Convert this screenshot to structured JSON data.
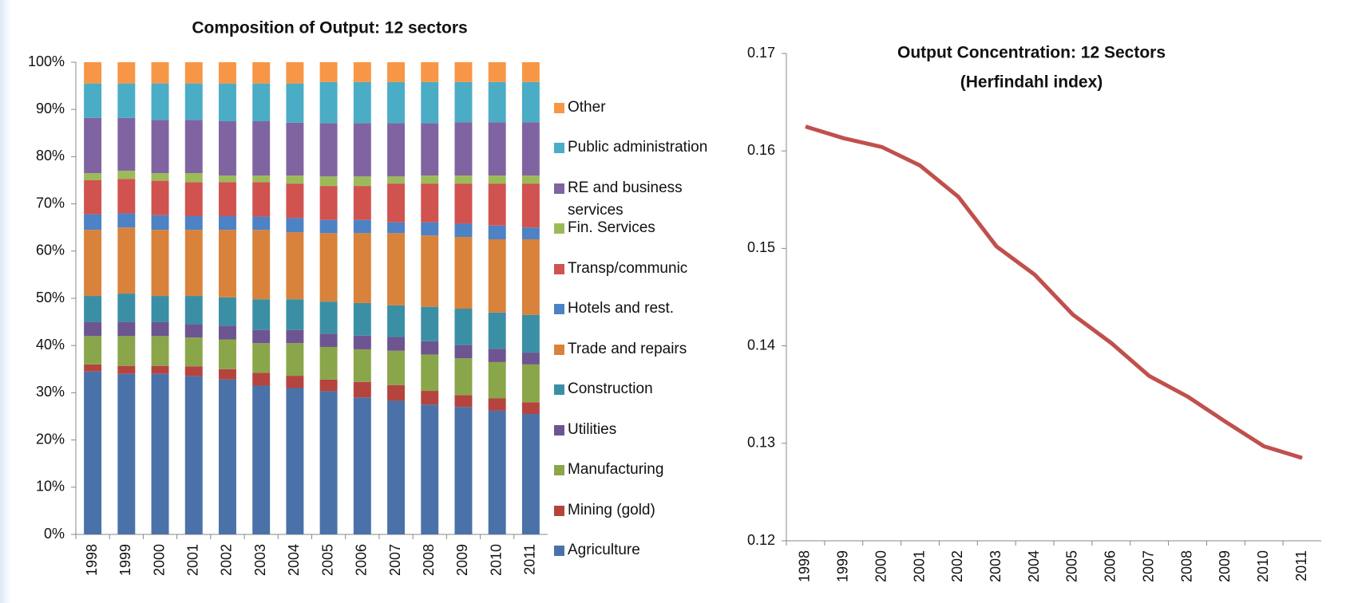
{
  "chart_data": [
    {
      "type": "stacked_bar",
      "title": "Composition of Output: 12 sectors",
      "categories": [
        "1998",
        "1999",
        "2000",
        "2001",
        "2002",
        "2003",
        "2004",
        "2005",
        "2006",
        "2007",
        "2008",
        "2009",
        "2010",
        "2011"
      ],
      "series": [
        {
          "name": "Agriculture",
          "color": "#4a72a8",
          "values": [
            34.5,
            34,
            34,
            33.5,
            32.8,
            31.5,
            31,
            30.3,
            29,
            28.3,
            27.5,
            27,
            26.2,
            25.5
          ]
        },
        {
          "name": "Mining (gold)",
          "color": "#b5443f",
          "values": [
            1.5,
            1.7,
            1.7,
            2.1,
            2.2,
            2.7,
            2.6,
            2.5,
            3.3,
            3.3,
            2.9,
            2.5,
            2.6,
            2.5
          ]
        },
        {
          "name": "Manufacturing",
          "color": "#8aa64a",
          "values": [
            6,
            6.3,
            6.3,
            6.1,
            6.3,
            6.3,
            6.9,
            6.9,
            6.9,
            7.3,
            7.7,
            7.8,
            7.7,
            8
          ]
        },
        {
          "name": "Utilities",
          "color": "#6d5591",
          "values": [
            3,
            3,
            3,
            2.8,
            2.9,
            2.8,
            2.8,
            2.8,
            2.9,
            2.9,
            2.8,
            2.8,
            2.8,
            2.5
          ]
        },
        {
          "name": "Construction",
          "color": "#3b8fa5",
          "values": [
            5.5,
            6,
            5.5,
            6,
            6,
            6.5,
            6.5,
            6.8,
            6.9,
            6.7,
            7.3,
            7.7,
            7.7,
            8
          ]
        },
        {
          "name": "Trade and repairs",
          "color": "#d9823b",
          "values": [
            14,
            14,
            14,
            14,
            14.3,
            14.7,
            14.2,
            14.5,
            14.8,
            15.3,
            15.1,
            15.2,
            15.5,
            16
          ]
        },
        {
          "name": "Hotels and rest.",
          "color": "#4d82c4",
          "values": [
            3.3,
            3,
            3.1,
            2.9,
            2.9,
            2.8,
            3,
            2.8,
            2.8,
            2.3,
            2.8,
            2.8,
            2.9,
            2.5
          ]
        },
        {
          "name": "Transp/communic",
          "color": "#d05350",
          "values": [
            7.2,
            7.3,
            7.3,
            7.2,
            7.2,
            7.3,
            7.3,
            7.2,
            7.2,
            8.2,
            8.2,
            8.5,
            8.9,
            9.3
          ]
        },
        {
          "name": "Fin. Services",
          "color": "#9bbb59",
          "values": [
            1.5,
            1.7,
            1.6,
            1.9,
            1.4,
            1.4,
            1.7,
            2,
            2,
            1.5,
            1.7,
            1.7,
            1.7,
            1.7
          ]
        },
        {
          "name": "RE and business services",
          "color": "#8064a2",
          "values": [
            11.7,
            11.2,
            11.3,
            11.3,
            11.5,
            11.5,
            11.2,
            11.3,
            11.3,
            11.3,
            11.1,
            11.3,
            11.3,
            11.3
          ]
        },
        {
          "name": "Public administration",
          "color": "#4bacc6",
          "values": [
            7.3,
            7.3,
            7.7,
            7.7,
            8,
            8,
            8.3,
            8.7,
            8.7,
            8.7,
            8.7,
            8.5,
            8.5,
            8.5
          ]
        },
        {
          "name": "Other",
          "color": "#f79646",
          "values": [
            4.5,
            4.5,
            4.5,
            4.5,
            4.5,
            4.5,
            4.5,
            4.2,
            4.2,
            4.2,
            4.2,
            4.2,
            4.2,
            4.2
          ]
        }
      ],
      "ylim": [
        0,
        100
      ],
      "yticks": [
        {
          "value": 0,
          "label": "0%"
        },
        {
          "value": 10,
          "label": "10%"
        },
        {
          "value": 20,
          "label": "20%"
        },
        {
          "value": 30,
          "label": "30%"
        },
        {
          "value": 40,
          "label": "40%"
        },
        {
          "value": 50,
          "label": "50%"
        },
        {
          "value": 60,
          "label": "60%"
        },
        {
          "value": 70,
          "label": "70%"
        },
        {
          "value": 80,
          "label": "80%"
        },
        {
          "value": 90,
          "label": "90%"
        },
        {
          "value": 100,
          "label": "100%"
        }
      ],
      "legend": "right"
    },
    {
      "type": "line",
      "title": "Output Concentration: 12 Sectors",
      "subtitle": "(Herfindahl index)",
      "categories": [
        "1998",
        "1999",
        "2000",
        "2001",
        "2002",
        "2003",
        "2004",
        "2005",
        "2006",
        "2007",
        "2008",
        "2009",
        "2010",
        "2011"
      ],
      "values": [
        0.1625,
        0.1613,
        0.1604,
        0.1585,
        0.1553,
        0.1502,
        0.1473,
        0.1432,
        0.1403,
        0.1369,
        0.1348,
        0.1322,
        0.1297,
        0.1285
      ],
      "color": "#c0504d",
      "ylim": [
        0.12,
        0.17
      ],
      "yticks": [
        0.12,
        0.13,
        0.14,
        0.15,
        0.16,
        0.17
      ]
    }
  ]
}
